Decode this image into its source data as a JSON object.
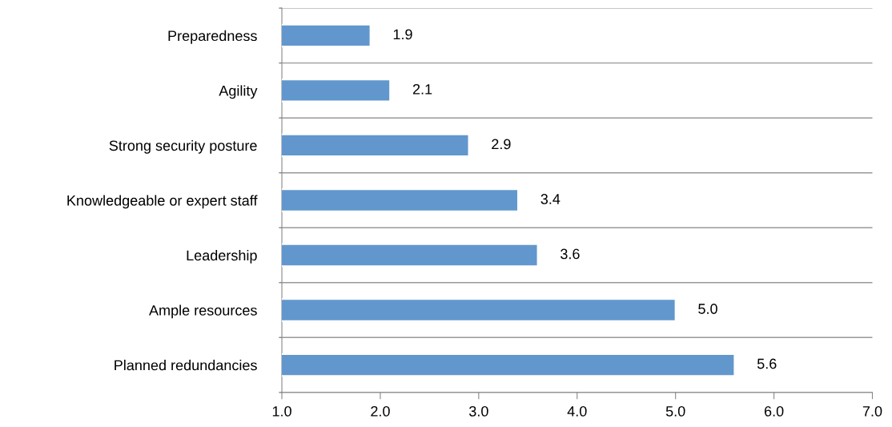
{
  "chart_data": {
    "type": "bar",
    "orientation": "horizontal",
    "categories": [
      "Preparedness",
      "Agility",
      "Strong security posture",
      "Knowledgeable or expert staff",
      "Leadership",
      "Ample resources",
      "Planned redundancies"
    ],
    "values": [
      1.9,
      2.1,
      2.9,
      3.4,
      3.6,
      5.0,
      5.6
    ],
    "color": "#6197cd",
    "value_labels": [
      "1.9",
      "2.1",
      "2.9",
      "3.4",
      "3.6",
      "5.0",
      "5.6"
    ],
    "xlim": [
      1.0,
      7.0
    ],
    "xticks": [
      {
        "value": 1,
        "label": "1.0"
      },
      {
        "value": 2,
        "label": "2.0"
      },
      {
        "value": 3,
        "label": "3.0"
      },
      {
        "value": 4,
        "label": "4.0"
      },
      {
        "value": 5,
        "label": "5.0"
      },
      {
        "value": 6,
        "label": "6.0"
      },
      {
        "value": 7,
        "label": "7.0"
      }
    ],
    "grid": "y",
    "legend": false
  }
}
